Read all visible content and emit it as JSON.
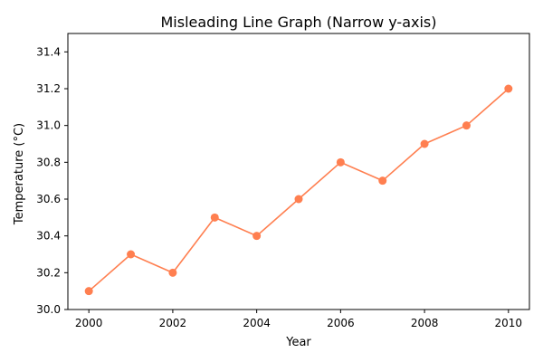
{
  "chart_data": {
    "type": "line",
    "title": "Misleading Line Graph (Narrow y-axis)",
    "xlabel": "Year",
    "ylabel": "Temperature (°C)",
    "x": [
      2000,
      2001,
      2002,
      2003,
      2004,
      2005,
      2006,
      2007,
      2008,
      2009,
      2010
    ],
    "series": [
      {
        "values": [
          30.1,
          30.3,
          30.2,
          30.5,
          30.4,
          30.6,
          30.8,
          30.7,
          30.9,
          31.0,
          31.2
        ],
        "color": "#ff7f50",
        "marker": "circle"
      }
    ],
    "xlim": [
      1999.5,
      2010.5
    ],
    "ylim": [
      30.0,
      31.5
    ],
    "xticks": [
      "2000",
      "2002",
      "2004",
      "2006",
      "2008",
      "2010"
    ],
    "yticks": [
      "30.0",
      "30.2",
      "30.4",
      "30.6",
      "30.8",
      "31.0",
      "31.2",
      "31.4"
    ],
    "grid": false,
    "legend": "none"
  }
}
